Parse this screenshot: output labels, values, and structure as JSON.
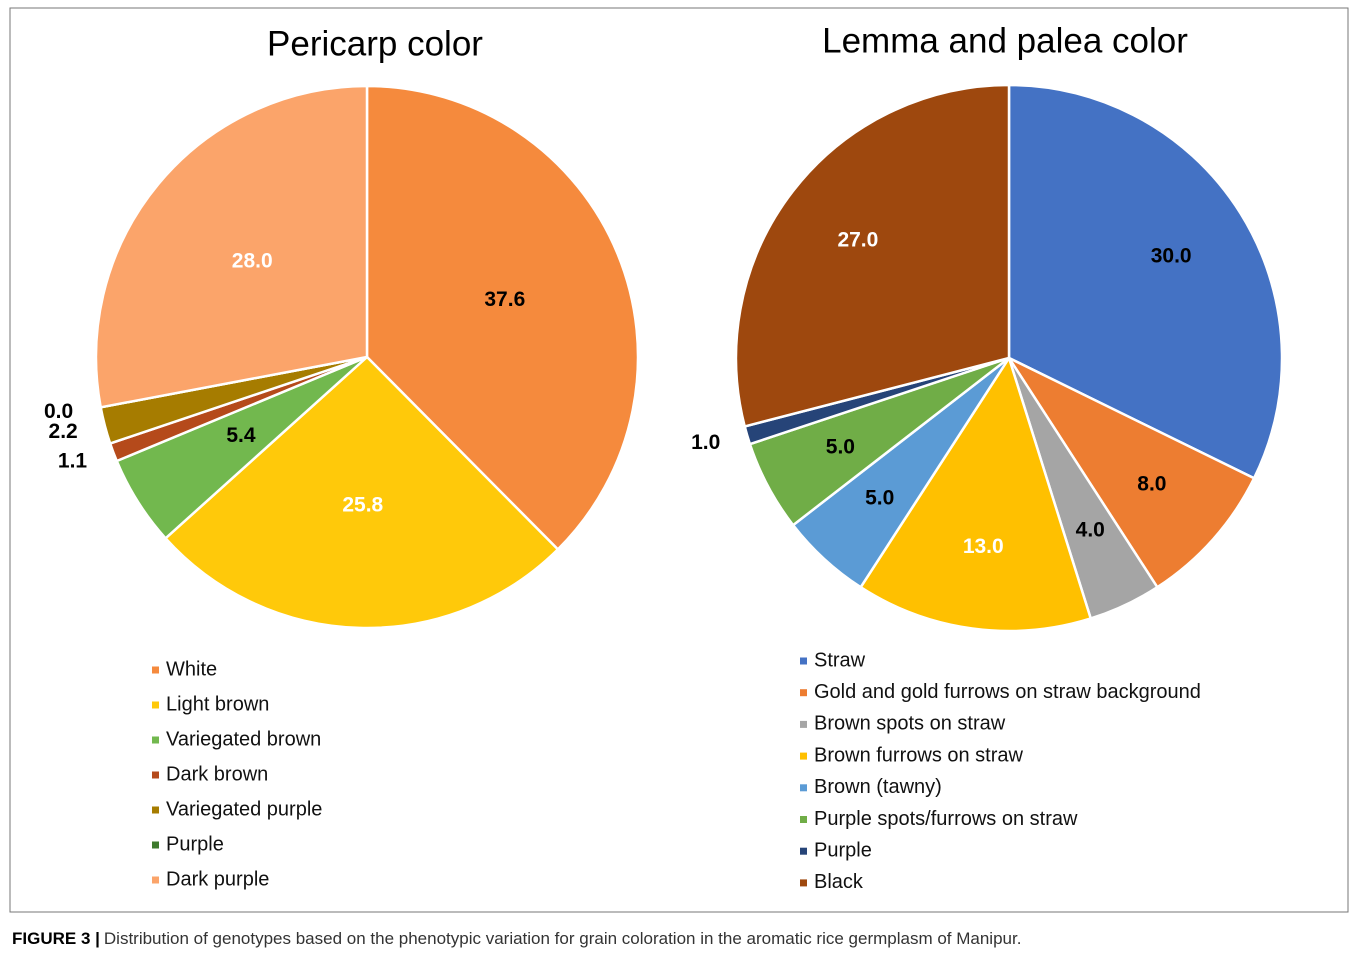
{
  "chart_data": [
    {
      "type": "pie",
      "title": "Pericarp color",
      "categories": [
        "White",
        "Light brown",
        "Variegated brown",
        "Dark brown",
        "Variegated purple",
        "Purple",
        "Dark purple"
      ],
      "values": [
        37.6,
        25.8,
        5.4,
        1.1,
        2.2,
        0.0,
        28.0
      ],
      "value_labels": [
        "37.6",
        "25.8",
        "5.4",
        "1.1",
        "2.2",
        "0.0",
        "28.0"
      ],
      "colors": [
        "#f58a3d",
        "#ffc90a",
        "#72b84e",
        "#b54a1b",
        "#a67c00",
        "#3e7a2d",
        "#fba46a"
      ],
      "label_colors": [
        "#000000",
        "#ffffff",
        "#000000",
        "#000000",
        "#000000",
        "#000000",
        "#ffffff"
      ]
    },
    {
      "type": "pie",
      "title": "Lemma and palea color",
      "categories": [
        "Straw",
        "Gold and gold furrows on straw background",
        "Brown spots on straw",
        "Brown furrows on straw",
        "Brown (tawny)",
        "Purple spots/furrows on straw",
        "Purple",
        "Black"
      ],
      "values": [
        30.0,
        8.0,
        4.0,
        13.0,
        5.0,
        5.0,
        1.0,
        27.0
      ],
      "value_labels": [
        "30.0",
        "8.0",
        "4.0",
        "13.0",
        "5.0",
        "5.0",
        "1.0",
        "27.0"
      ],
      "colors": [
        "#4472c4",
        "#ed7d31",
        "#a5a5a5",
        "#ffc000",
        "#5b9bd5",
        "#70ad47",
        "#264478",
        "#9e480e"
      ],
      "label_colors": [
        "#000000",
        "#000000",
        "#000000",
        "#ffffff",
        "#000000",
        "#000000",
        "#000000",
        "#ffffff"
      ]
    }
  ],
  "caption": {
    "label": "FIGURE 3 |",
    "text": "Distribution of genotypes based on the phenotypic variation for grain coloration in the aromatic rice germplasm of Manipur."
  }
}
